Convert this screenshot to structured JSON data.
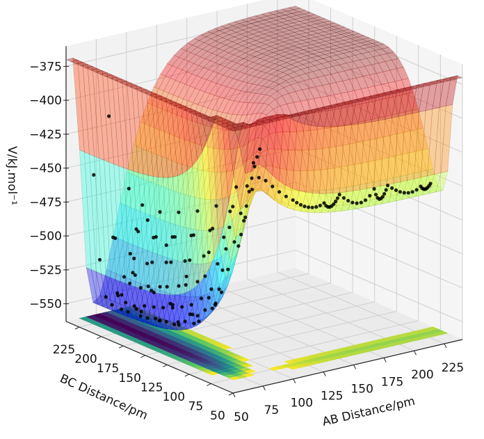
{
  "chart_data": {
    "type": "surface",
    "title": "",
    "xlabel": "AB Distance/pm",
    "ylabel": "BC Distance/pm",
    "zlabel": "V/kJ.mol⁻¹",
    "xticks": [
      "50",
      "75",
      "100",
      "125",
      "150",
      "175",
      "200",
      "225"
    ],
    "yticks": [
      "50",
      "75",
      "100",
      "125",
      "150",
      "175",
      "200",
      "225"
    ],
    "zticks": [
      "−550",
      "−525",
      "−500",
      "−475",
      "−450",
      "−425",
      "−400",
      "−375"
    ],
    "xlim": [
      50,
      240
    ],
    "ylim": [
      50,
      240
    ],
    "zlim": [
      -563,
      -360
    ],
    "grid": true,
    "surface_colormap": "jet",
    "floor_contour_colormap": "viridis",
    "trajectory_color": "#000000",
    "trajectory": [
      [
        62,
        225
      ],
      [
        95,
        215
      ],
      [
        60,
        205
      ],
      [
        95,
        195
      ],
      [
        62,
        185
      ],
      [
        96,
        175
      ],
      [
        63,
        165
      ],
      [
        97,
        155
      ],
      [
        64,
        145
      ],
      [
        98,
        135
      ],
      [
        66,
        125
      ],
      [
        100,
        115
      ],
      [
        70,
        105
      ],
      [
        105,
        95
      ],
      [
        80,
        85
      ],
      [
        120,
        78
      ],
      [
        140,
        70
      ],
      [
        160,
        80
      ],
      [
        180,
        68
      ],
      [
        200,
        80
      ],
      [
        220,
        70
      ],
      [
        235,
        78
      ]
    ]
  }
}
